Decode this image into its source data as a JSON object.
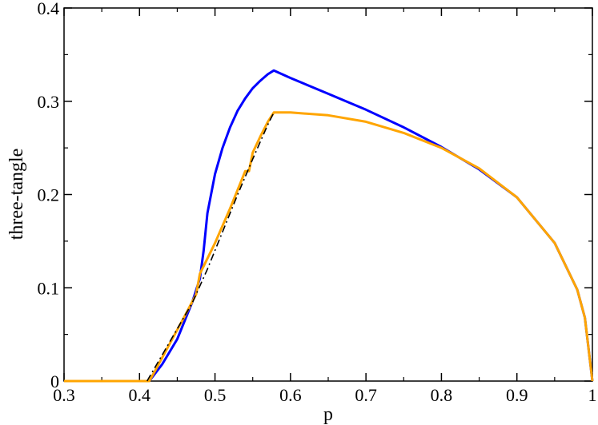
{
  "chart_data": {
    "type": "line",
    "xlabel": "p",
    "ylabel": "three-tangle",
    "xlim": [
      0.3,
      1.0
    ],
    "ylim": [
      0.0,
      0.4
    ],
    "xticks": [
      0.3,
      0.4,
      0.5,
      0.6,
      0.7,
      0.8,
      0.9,
      1.0
    ],
    "xtick_labels": [
      "0.3",
      "0.4",
      "0.5",
      "0.6",
      "0.7",
      "0.8",
      "0.9",
      "1"
    ],
    "yticks": [
      0.0,
      0.1,
      0.2,
      0.3,
      0.4
    ],
    "ytick_labels": [
      "0",
      "0.1",
      "0.2",
      "0.3",
      "0.4"
    ],
    "grid": false,
    "series": [
      {
        "color": "#0000ff",
        "style": "solid",
        "x": [
          0.413,
          0.43,
          0.45,
          0.47,
          0.48,
          0.485,
          0.49,
          0.5,
          0.51,
          0.52,
          0.53,
          0.54,
          0.55,
          0.56,
          0.57,
          0.578,
          0.6,
          0.65,
          0.7,
          0.75,
          0.8,
          0.85,
          0.9,
          0.95,
          0.98,
          0.99,
          1.0
        ],
        "y": [
          0.0,
          0.018,
          0.045,
          0.085,
          0.11,
          0.14,
          0.18,
          0.222,
          0.25,
          0.272,
          0.29,
          0.303,
          0.314,
          0.322,
          0.329,
          0.333,
          0.325,
          0.308,
          0.291,
          0.272,
          0.251,
          0.227,
          0.197,
          0.148,
          0.098,
          0.068,
          0.0
        ]
      },
      {
        "color": "#ffa500",
        "style": "solid",
        "x": [
          0.3,
          0.413,
          0.42,
          0.44,
          0.46,
          0.475,
          0.48,
          0.5,
          0.52,
          0.535,
          0.54,
          0.545,
          0.55,
          0.56,
          0.57,
          0.578,
          0.6,
          0.65,
          0.7,
          0.75,
          0.8,
          0.85,
          0.9,
          0.95,
          0.98,
          0.99,
          1.0
        ],
        "y": [
          0.0,
          0.0,
          0.01,
          0.04,
          0.07,
          0.093,
          0.115,
          0.148,
          0.185,
          0.215,
          0.225,
          0.225,
          0.245,
          0.262,
          0.278,
          0.288,
          0.288,
          0.285,
          0.278,
          0.266,
          0.25,
          0.228,
          0.197,
          0.148,
          0.098,
          0.068,
          0.0
        ]
      },
      {
        "color": "#000000",
        "style": "dash-dot",
        "x": [
          0.41,
          0.43,
          0.45,
          0.47,
          0.49,
          0.51,
          0.53,
          0.55,
          0.57,
          0.578
        ],
        "y": [
          0.0,
          0.028,
          0.056,
          0.084,
          0.12,
          0.16,
          0.2,
          0.238,
          0.275,
          0.288
        ]
      }
    ]
  }
}
